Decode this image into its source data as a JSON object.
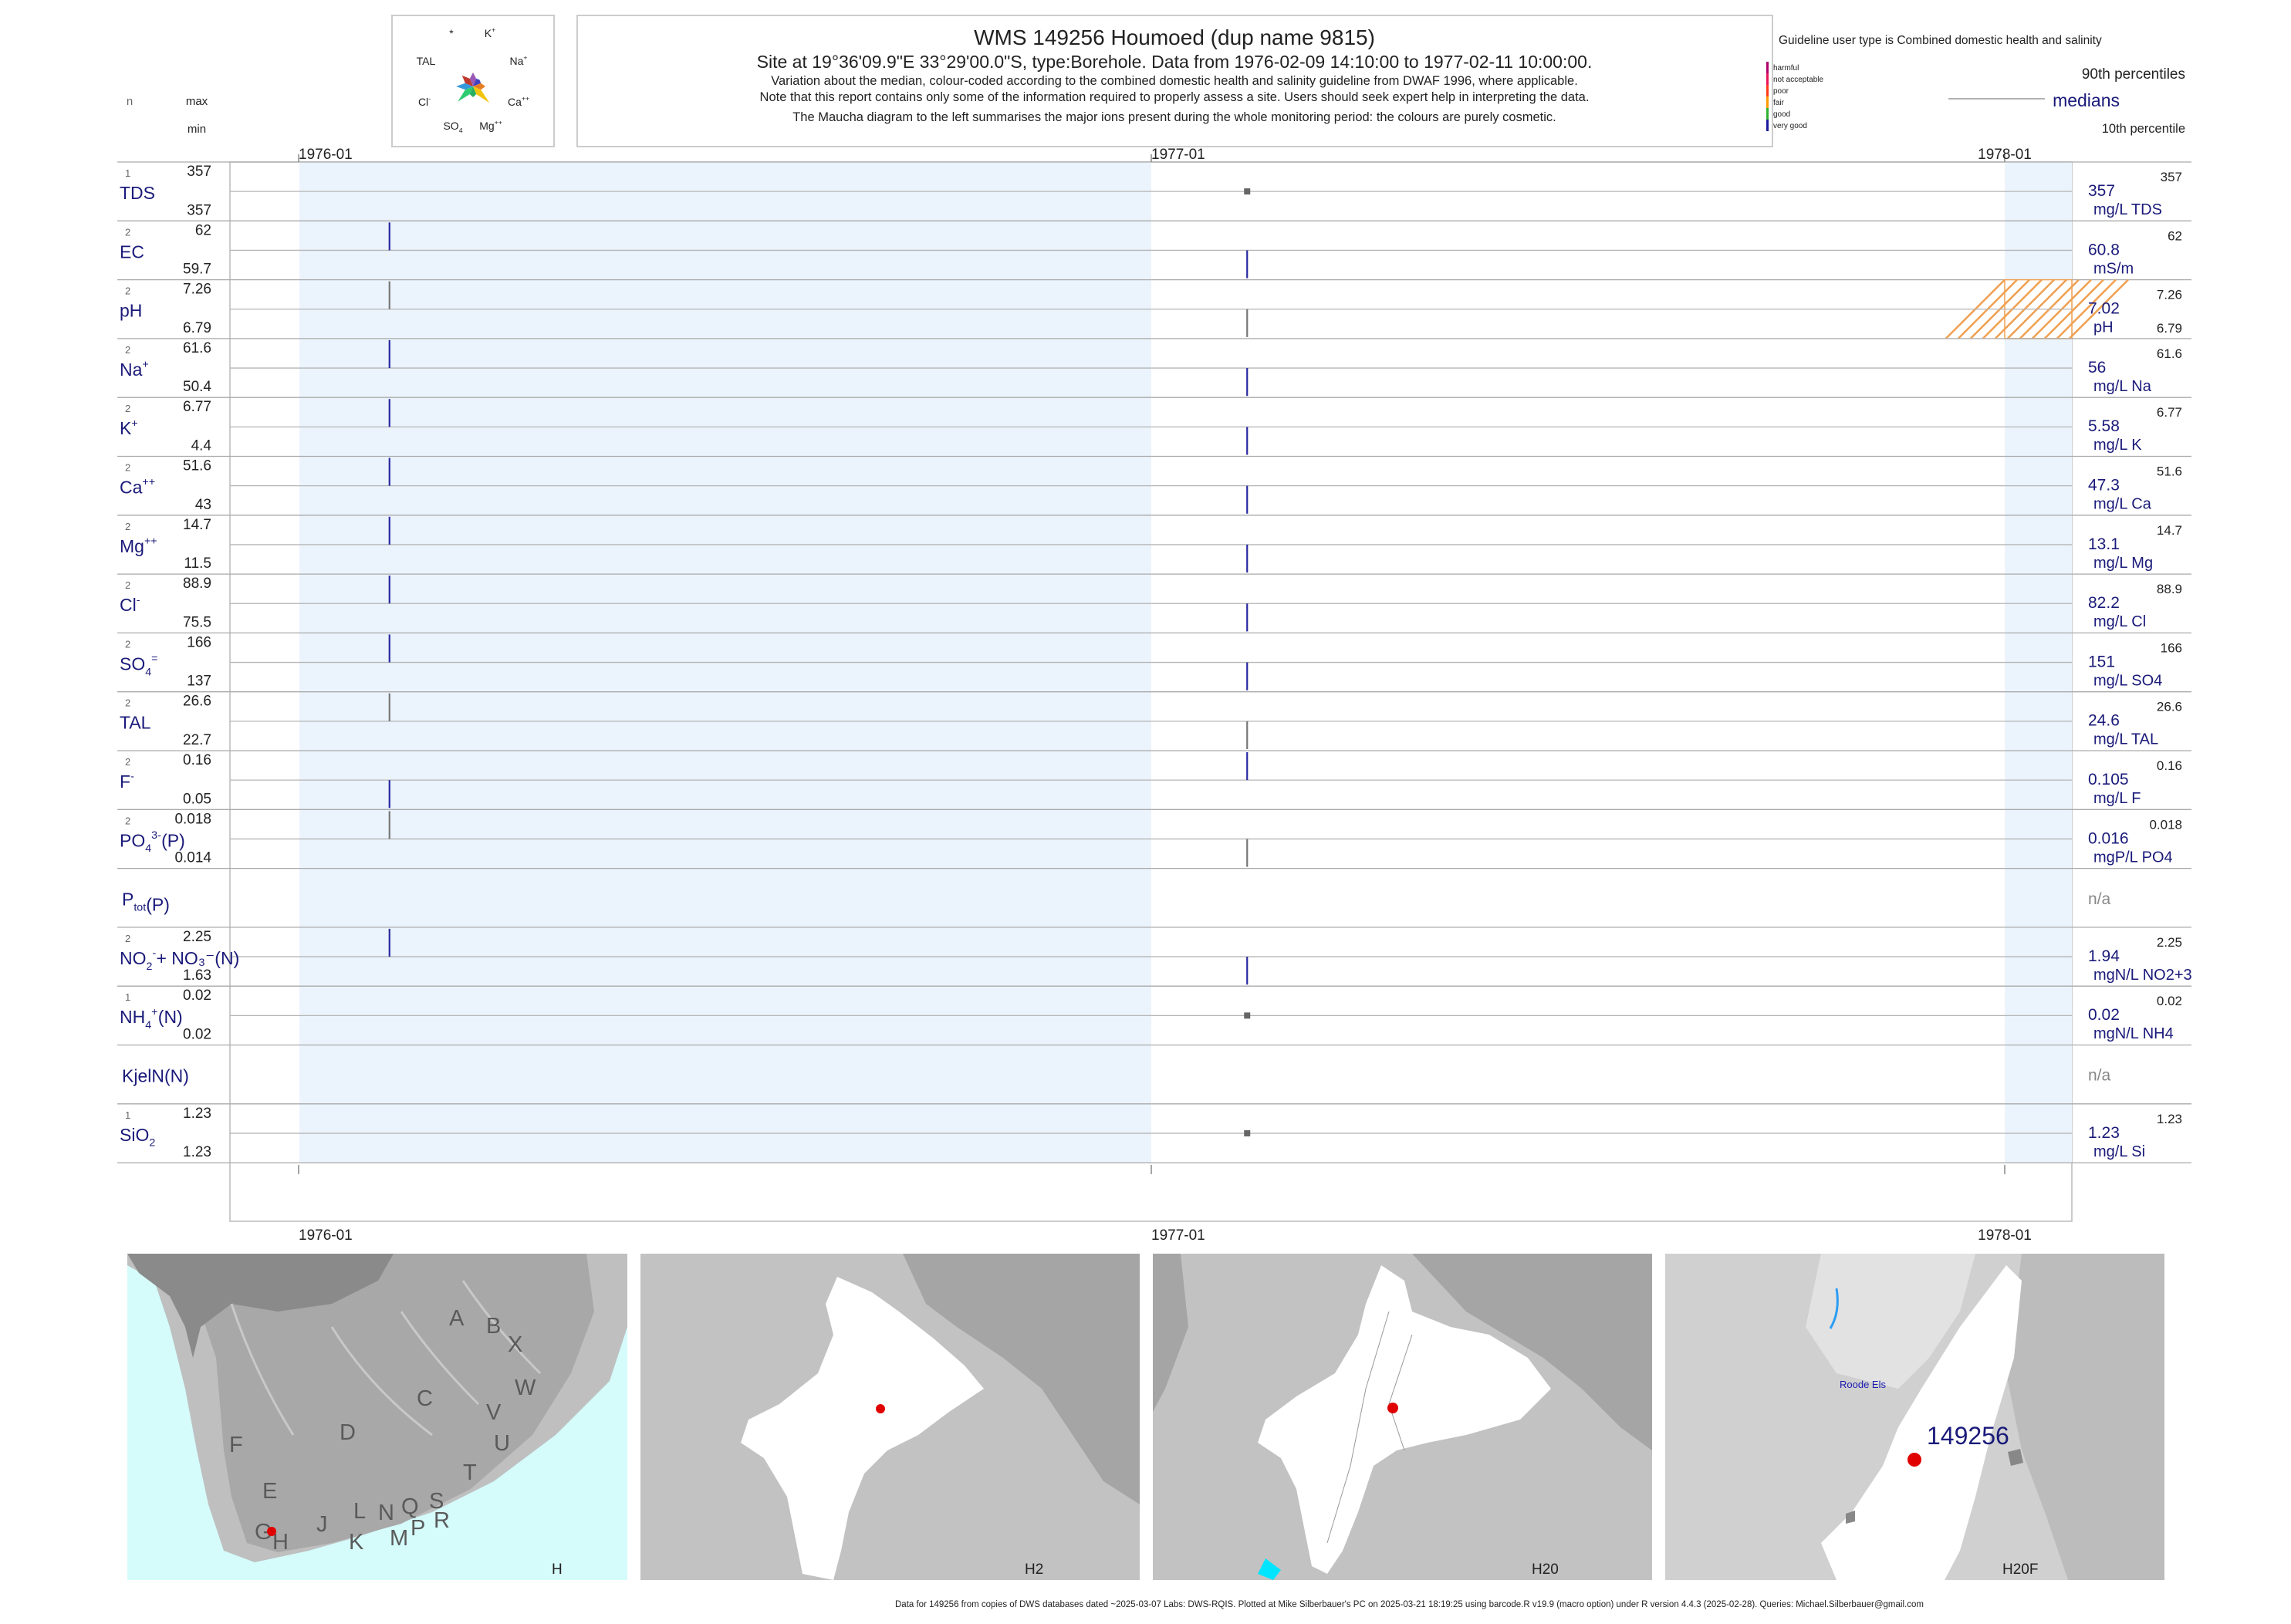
{
  "header": {
    "title": "WMS 149256  Houmoed (dup name 9815)",
    "subtitle": "Site at 19°36'09.9\"E 33°29'00.0\"S, type:Borehole.  Data from 1976-02-09 14:10:00 to 1977-02-11 10:00:00.",
    "note1": "Variation about the median,  colour-coded according to the combined domestic health and salinity guideline from DWAF 1996, where applicable.",
    "note2": "Note that this report contains only some of the information required to properly assess a site. Users should seek expert help in interpreting the data.",
    "note3": "The Maucha diagram to the left summarises the major ions present during the whole monitoring period: the colours are purely cosmetic."
  },
  "maucha": {
    "labels": [
      "*",
      "K",
      "TAL",
      "Na",
      "Cl",
      "Ca",
      "SO",
      "Mg"
    ],
    "sup": [
      "",
      "+",
      "",
      "+",
      "-",
      "++",
      "",
      "++"
    ],
    "sub": [
      "",
      "",
      "",
      "",
      "",
      "",
      "4",
      ""
    ],
    "colors": [
      "#9b59b6",
      "#4040c0",
      "#e67e22",
      "#f1c40f",
      "#27ae60",
      "#2ecc71",
      "#3498db",
      "#c0392b"
    ]
  },
  "col_headers": {
    "n": "n",
    "max": "max",
    "min": "min"
  },
  "guideline": {
    "title": "Guideline user type is Combined domestic health and salinity",
    "levels": [
      {
        "label": "harmful",
        "color": "#b0006e"
      },
      {
        "label": "not acceptable",
        "color": "#e8155a"
      },
      {
        "label": "poor",
        "color": "#ff3a1a"
      },
      {
        "label": "fair",
        "color": "#ff9a00"
      },
      {
        "label": "good",
        "color": "#30b030"
      },
      {
        "label": "very good",
        "color": "#1a1a9a"
      }
    ],
    "p90": "90th percentiles",
    "medians": "medians",
    "p10": "10th percentile"
  },
  "chart_data": {
    "type": "line",
    "x_ticks": [
      "1976-01",
      "1977-01",
      "1978-01"
    ],
    "series": [
      {
        "name": "TDS",
        "sup": "",
        "sub": "",
        "n": "1",
        "max": "357",
        "min": "357",
        "median": "357",
        "unit": "mg/L TDS",
        "p90": "357",
        "p10": "",
        "samples": [
          {
            "date": "1977-02-11",
            "value": 357
          }
        ],
        "hatched": false
      },
      {
        "name": "EC",
        "sup": "",
        "sub": "",
        "n": "2",
        "max": "62",
        "min": "59.7",
        "median": "60.8",
        "unit": "mS/m",
        "p90": "62",
        "p10": "",
        "samples": [
          {
            "date": "1976-02-09",
            "value": 62
          },
          {
            "date": "1977-02-11",
            "value": 59.7
          }
        ],
        "hatched": false
      },
      {
        "name": "pH",
        "sup": "",
        "sub": "",
        "n": "2",
        "max": "7.26",
        "min": "6.79",
        "median": "7.02",
        "unit": "pH",
        "p90": "7.26",
        "p10": "6.79",
        "samples": [
          {
            "date": "1976-02-09",
            "value": 7.26
          },
          {
            "date": "1977-02-11",
            "value": 6.79
          }
        ],
        "hatched": true
      },
      {
        "name": "Na",
        "sup": "+",
        "sub": "",
        "n": "2",
        "max": "61.6",
        "min": "50.4",
        "median": "56",
        "unit": "mg/L Na",
        "p90": "61.6",
        "p10": "",
        "samples": [
          {
            "date": "1976-02-09",
            "value": 61.6
          },
          {
            "date": "1977-02-11",
            "value": 50.4
          }
        ],
        "hatched": false
      },
      {
        "name": "K",
        "sup": "+",
        "sub": "",
        "n": "2",
        "max": "6.77",
        "min": "4.4",
        "median": "5.58",
        "unit": "mg/L K",
        "p90": "6.77",
        "p10": "",
        "samples": [
          {
            "date": "1976-02-09",
            "value": 6.77
          },
          {
            "date": "1977-02-11",
            "value": 4.4
          }
        ],
        "hatched": false
      },
      {
        "name": "Ca",
        "sup": "++",
        "sub": "",
        "n": "2",
        "max": "51.6",
        "min": "43",
        "median": "47.3",
        "unit": "mg/L Ca",
        "p90": "51.6",
        "p10": "",
        "samples": [
          {
            "date": "1976-02-09",
            "value": 51.6
          },
          {
            "date": "1977-02-11",
            "value": 43
          }
        ],
        "hatched": false
      },
      {
        "name": "Mg",
        "sup": "++",
        "sub": "",
        "n": "2",
        "max": "14.7",
        "min": "11.5",
        "median": "13.1",
        "unit": "mg/L Mg",
        "p90": "14.7",
        "p10": "",
        "samples": [
          {
            "date": "1976-02-09",
            "value": 14.7
          },
          {
            "date": "1977-02-11",
            "value": 11.5
          }
        ],
        "hatched": false
      },
      {
        "name": "Cl",
        "sup": "-",
        "sub": "",
        "n": "2",
        "max": "88.9",
        "min": "75.5",
        "median": "82.2",
        "unit": "mg/L Cl",
        "p90": "88.9",
        "p10": "",
        "samples": [
          {
            "date": "1976-02-09",
            "value": 88.9
          },
          {
            "date": "1977-02-11",
            "value": 75.5
          }
        ],
        "hatched": false
      },
      {
        "name": "SO",
        "sup": "=",
        "sub": "4",
        "n": "2",
        "max": "166",
        "min": "137",
        "median": "151",
        "unit": "mg/L SO4",
        "p90": "166",
        "p10": "",
        "samples": [
          {
            "date": "1976-02-09",
            "value": 166
          },
          {
            "date": "1977-02-11",
            "value": 137
          }
        ],
        "hatched": false
      },
      {
        "name": "TAL",
        "sup": "",
        "sub": "",
        "n": "2",
        "max": "26.6",
        "min": "22.7",
        "median": "24.6",
        "unit": "mg/L TAL",
        "p90": "26.6",
        "p10": "",
        "samples": [
          {
            "date": "1976-02-09",
            "value": 26.6
          },
          {
            "date": "1977-02-11",
            "value": 22.7
          }
        ],
        "hatched": false
      },
      {
        "name": "F",
        "sup": "-",
        "sub": "",
        "n": "2",
        "max": "0.16",
        "min": "0.05",
        "median": "0.105",
        "unit": "mg/L F",
        "p90": "0.16",
        "p10": "",
        "samples": [
          {
            "date": "1976-02-09",
            "value": 0.05
          },
          {
            "date": "1977-02-11",
            "value": 0.16
          }
        ],
        "hatched": false
      },
      {
        "name": "PO",
        "sup": "3-",
        "sub": "4",
        "tail": "(P)",
        "n": "2",
        "max": "0.018",
        "min": "0.014",
        "median": "0.016",
        "unit": "mgP/L PO4",
        "p90": "0.018",
        "p10": "",
        "samples": [
          {
            "date": "1976-02-09",
            "value": 0.018
          },
          {
            "date": "1977-02-11",
            "value": 0.014
          }
        ],
        "hatched": false
      },
      {
        "name": "P",
        "sup": "",
        "sub": "tot",
        "tail": "(P)",
        "n": "",
        "max": "",
        "min": "",
        "median": "n/a",
        "unit": "",
        "p90": "",
        "p10": "",
        "samples": [],
        "hatched": false
      },
      {
        "name": "NO",
        "sup": "-",
        "sub": "2",
        "tail": "+ NO₃⁻(N)",
        "n": "2",
        "max": "2.25",
        "min": "1.63",
        "median": "1.94",
        "unit": "mgN/L NO2+3",
        "p90": "2.25",
        "p10": "",
        "samples": [
          {
            "date": "1976-02-09",
            "value": 2.25
          },
          {
            "date": "1977-02-11",
            "value": 1.63
          }
        ],
        "hatched": false
      },
      {
        "name": "NH",
        "sup": "+",
        "sub": "4",
        "tail": "(N)",
        "n": "1",
        "max": "0.02",
        "min": "0.02",
        "median": "0.02",
        "unit": "mgN/L NH4",
        "p90": "0.02",
        "p10": "",
        "samples": [
          {
            "date": "1977-02-11",
            "value": 0.02
          }
        ],
        "hatched": false
      },
      {
        "name": "KjelN(N)",
        "sup": "",
        "sub": "",
        "n": "",
        "max": "",
        "min": "",
        "median": "n/a",
        "unit": "",
        "p90": "",
        "p10": "",
        "samples": [],
        "hatched": false
      },
      {
        "name": "SiO",
        "sup": "",
        "sub": "2",
        "n": "1",
        "max": "1.23",
        "min": "1.23",
        "median": "1.23",
        "unit": "mg/L Si",
        "p90": "1.23",
        "p10": "",
        "samples": [
          {
            "date": "1977-02-11",
            "value": 1.23
          }
        ],
        "hatched": false
      }
    ]
  },
  "maps": [
    {
      "label": "H",
      "letters": [
        "A",
        "B",
        "X",
        "W",
        "C",
        "V",
        "U",
        "D",
        "F",
        "T",
        "E",
        "L",
        "N",
        "Q",
        "S",
        "R",
        "J",
        "K",
        "M",
        "P",
        "G",
        "H"
      ]
    },
    {
      "label": "H2"
    },
    {
      "label": "H20"
    },
    {
      "label": "H20F",
      "site": "149256",
      "river": "Roode Els"
    }
  ],
  "footer": "Data for 149256 from copies of DWS databases dated ~2025-03-07 Labs: DWS-RQIS. Plotted at Mike Silberbauer's PC on 2025-03-21 18:19:25 using barcode.R v19.9 (macro option) under R version 4.4.3 (2025-02-28). Queries: Michael.Silberbauer@gmail.com"
}
